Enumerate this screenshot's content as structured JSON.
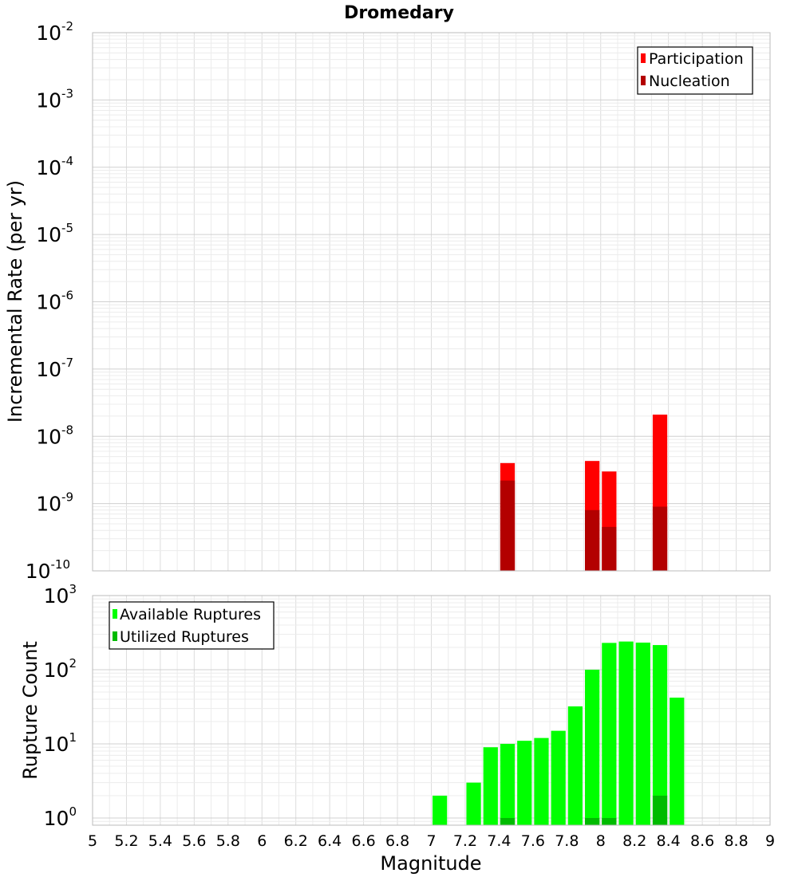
{
  "chart_data": {
    "title": "Dromedary",
    "xlabel": "Magnitude",
    "xlim": [
      5,
      9
    ],
    "xticks": [
      "5",
      "5.2",
      "5.4",
      "5.6",
      "5.8",
      "6",
      "6.2",
      "6.4",
      "6.6",
      "6.8",
      "7",
      "7.2",
      "7.4",
      "7.6",
      "7.8",
      "8",
      "8.2",
      "8.4",
      "8.6",
      "8.8",
      "9"
    ],
    "grid": true,
    "panels": [
      {
        "type": "bar",
        "ylabel": "Incremental Rate (per yr)",
        "yscale": "log",
        "ylim": [
          1e-10,
          0.01
        ],
        "yticks": [
          {
            "base": "10",
            "exp": "-2"
          },
          {
            "base": "10",
            "exp": "-3"
          },
          {
            "base": "10",
            "exp": "-4"
          },
          {
            "base": "10",
            "exp": "-5"
          },
          {
            "base": "10",
            "exp": "-6"
          },
          {
            "base": "10",
            "exp": "-7"
          },
          {
            "base": "10",
            "exp": "-8"
          },
          {
            "base": "10",
            "exp": "-9"
          },
          {
            "base": "10",
            "exp": "-10"
          }
        ],
        "legend_position": "top-right",
        "series": [
          {
            "name": "Participation",
            "color": "#ff0000",
            "x": [
              7.45,
              7.95,
              8.05,
              8.35
            ],
            "values": [
              4e-09,
              4.3e-09,
              3e-09,
              2.1e-08
            ]
          },
          {
            "name": "Nucleation",
            "color": "#b30000",
            "x": [
              7.45,
              7.95,
              8.05,
              8.35
            ],
            "values": [
              2.2e-09,
              8e-10,
              4.5e-10,
              9e-10
            ]
          }
        ]
      },
      {
        "type": "bar",
        "ylabel": "Rupture Count",
        "yscale": "log",
        "ylim": [
          0.8,
          1000
        ],
        "yticks": [
          {
            "base": "10",
            "exp": "3"
          },
          {
            "base": "10",
            "exp": "2"
          },
          {
            "base": "10",
            "exp": "1"
          },
          {
            "base": "10",
            "exp": "0"
          }
        ],
        "legend_position": "top-left",
        "series": [
          {
            "name": "Available Ruptures",
            "color": "#00ff00",
            "x": [
              7.05,
              7.25,
              7.35,
              7.45,
              7.55,
              7.65,
              7.75,
              7.85,
              7.95,
              8.05,
              8.15,
              8.25,
              8.35,
              8.45
            ],
            "values": [
              2,
              3,
              9,
              10,
              11,
              12,
              15,
              32,
              100,
              230,
              240,
              232,
              215,
              42
            ]
          },
          {
            "name": "Utilized Ruptures",
            "color": "#00bb00",
            "x": [
              7.45,
              7.95,
              8.05,
              8.35
            ],
            "values": [
              1,
              1,
              1,
              2
            ]
          }
        ]
      }
    ]
  }
}
